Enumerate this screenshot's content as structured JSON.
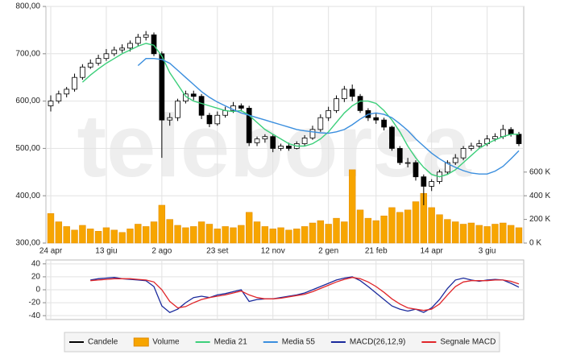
{
  "chart_data": [
    {
      "type": "candlestick",
      "watermark": "teleborsa",
      "grid": true,
      "categories": [
        "24 apr",
        null,
        null,
        null,
        null,
        null,
        null,
        "13 giu",
        null,
        null,
        null,
        null,
        null,
        null,
        "2 ago",
        null,
        null,
        null,
        null,
        null,
        null,
        "23 set",
        null,
        null,
        null,
        null,
        null,
        null,
        "12 nov",
        null,
        null,
        null,
        null,
        null,
        null,
        "2 gen",
        null,
        null,
        null,
        null,
        null,
        "21 feb",
        null,
        null,
        null,
        null,
        null,
        null,
        "14 apr",
        null,
        null,
        null,
        null,
        null,
        null,
        "3 giu",
        null,
        null,
        null,
        null
      ],
      "ylim": [
        300,
        800
      ],
      "yticks": [
        {
          "value": 800,
          "label": "800,00"
        },
        {
          "value": 700,
          "label": "700,00"
        },
        {
          "value": 600,
          "label": "600,00"
        },
        {
          "value": 500,
          "label": "500,00"
        },
        {
          "value": 400,
          "label": "400,00"
        },
        {
          "value": 300,
          "label": "300,00"
        }
      ],
      "y2lim": [
        0,
        2000000
      ],
      "y2ticks": [
        {
          "value": 0,
          "label": "0 K"
        },
        {
          "value": 200000,
          "label": "200 K"
        },
        {
          "value": 400000,
          "label": "400 K"
        },
        {
          "value": 600000,
          "label": "600 K"
        }
      ],
      "series": [
        {
          "name": "Candele",
          "color": "#000000",
          "open": [
            590,
            600,
            615,
            625,
            650,
            672,
            680,
            690,
            700,
            708,
            712,
            722,
            735,
            740,
            700,
            560,
            565,
            600,
            615,
            610,
            570,
            552,
            570,
            580,
            590,
            585,
            512,
            520,
            525,
            500,
            505,
            500,
            510,
            522,
            540,
            565,
            580,
            605,
            625,
            610,
            580,
            565,
            560,
            545,
            500,
            470,
            470,
            440,
            420,
            430,
            450,
            470,
            480,
            500,
            505,
            510,
            520,
            525,
            540,
            530
          ],
          "high": [
            612,
            622,
            630,
            658,
            678,
            688,
            698,
            710,
            715,
            720,
            728,
            742,
            748,
            745,
            705,
            575,
            605,
            622,
            622,
            615,
            575,
            578,
            588,
            598,
            595,
            590,
            525,
            530,
            530,
            510,
            512,
            515,
            528,
            548,
            572,
            588,
            612,
            632,
            635,
            615,
            585,
            575,
            565,
            548,
            505,
            480,
            475,
            445,
            435,
            455,
            475,
            488,
            505,
            512,
            518,
            528,
            532,
            550,
            545,
            535
          ],
          "low": [
            578,
            595,
            608,
            620,
            645,
            668,
            675,
            685,
            695,
            702,
            705,
            715,
            728,
            695,
            480,
            548,
            558,
            595,
            602,
            562,
            545,
            548,
            565,
            575,
            578,
            505,
            505,
            512,
            492,
            495,
            495,
            498,
            505,
            518,
            535,
            558,
            575,
            598,
            600,
            575,
            558,
            552,
            538,
            495,
            465,
            460,
            432,
            380,
            410,
            425,
            445,
            465,
            475,
            495,
            500,
            505,
            515,
            520,
            525,
            505
          ],
          "close": [
            600,
            615,
            625,
            650,
            672,
            680,
            690,
            700,
            708,
            712,
            722,
            735,
            740,
            700,
            560,
            565,
            600,
            615,
            610,
            570,
            552,
            570,
            580,
            590,
            585,
            512,
            520,
            525,
            500,
            505,
            500,
            510,
            522,
            540,
            565,
            580,
            605,
            625,
            610,
            580,
            565,
            560,
            545,
            500,
            470,
            470,
            440,
            420,
            430,
            450,
            470,
            480,
            500,
            505,
            510,
            520,
            525,
            540,
            530,
            510
          ]
        },
        {
          "name": "Volume",
          "type": "bar",
          "axis": "y2",
          "color": "#f7a500",
          "values": [
            250000,
            180000,
            140000,
            110000,
            150000,
            120000,
            100000,
            130000,
            110000,
            90000,
            120000,
            160000,
            140000,
            180000,
            320000,
            200000,
            150000,
            130000,
            140000,
            180000,
            160000,
            120000,
            140000,
            130000,
            150000,
            260000,
            180000,
            140000,
            120000,
            130000,
            110000,
            120000,
            140000,
            170000,
            190000,
            160000,
            210000,
            180000,
            620000,
            280000,
            210000,
            190000,
            230000,
            300000,
            260000,
            280000,
            350000,
            420000,
            300000,
            240000,
            200000,
            180000,
            160000,
            170000,
            150000,
            140000,
            160000,
            170000,
            150000,
            130000
          ]
        },
        {
          "name": "Media 21",
          "type": "line",
          "color": "#3ccf7a",
          "values": [
            null,
            null,
            null,
            null,
            640,
            655,
            668,
            680,
            690,
            700,
            708,
            716,
            722,
            718,
            695,
            660,
            635,
            610,
            600,
            595,
            590,
            585,
            580,
            578,
            580,
            570,
            555,
            540,
            530,
            520,
            510,
            505,
            505,
            510,
            520,
            535,
            555,
            575,
            590,
            600,
            600,
            595,
            580,
            560,
            535,
            505,
            480,
            460,
            445,
            440,
            445,
            455,
            470,
            485,
            500,
            510,
            518,
            525,
            530,
            530
          ]
        },
        {
          "name": "Media 55",
          "type": "line",
          "color": "#3a8ede",
          "values": [
            null,
            null,
            null,
            null,
            null,
            null,
            null,
            null,
            null,
            null,
            null,
            675,
            690,
            690,
            688,
            680,
            665,
            650,
            635,
            620,
            608,
            598,
            590,
            582,
            575,
            570,
            565,
            560,
            555,
            550,
            545,
            540,
            537,
            535,
            533,
            532,
            535,
            540,
            550,
            562,
            572,
            575,
            572,
            565,
            552,
            538,
            520,
            505,
            490,
            478,
            468,
            460,
            453,
            448,
            446,
            446,
            452,
            462,
            478,
            495
          ]
        }
      ]
    },
    {
      "type": "line",
      "grid": true,
      "ylim": [
        -46,
        46
      ],
      "yticks": [
        40,
        20,
        0,
        -20,
        -40
      ],
      "series": [
        {
          "name": "MACD(26,12,9)",
          "color": "#1a2a9c",
          "values": [
            null,
            null,
            null,
            null,
            null,
            15,
            17,
            18,
            19,
            17,
            16,
            15,
            14,
            5,
            -25,
            -35,
            -30,
            -20,
            -12,
            -10,
            -12,
            -8,
            -6,
            -3,
            0,
            -18,
            -15,
            -14,
            -14,
            -12,
            -10,
            -8,
            -5,
            0,
            5,
            10,
            15,
            18,
            20,
            14,
            5,
            -5,
            -15,
            -25,
            -30,
            -33,
            -30,
            -35,
            -28,
            -15,
            2,
            15,
            18,
            15,
            13,
            15,
            16,
            15,
            10,
            4
          ]
        },
        {
          "name": "Segnale MACD",
          "color": "#e0262a",
          "values": [
            null,
            null,
            null,
            null,
            null,
            14,
            15,
            16,
            17,
            17,
            17,
            16,
            15,
            12,
            0,
            -18,
            -28,
            -26,
            -20,
            -15,
            -12,
            -10,
            -8,
            -5,
            -2,
            -8,
            -12,
            -14,
            -14,
            -13,
            -11,
            -9,
            -7,
            -3,
            2,
            7,
            12,
            16,
            19,
            17,
            12,
            5,
            -4,
            -14,
            -22,
            -28,
            -30,
            -32,
            -30,
            -22,
            -8,
            5,
            12,
            14,
            14,
            14,
            15,
            15,
            13,
            9
          ]
        }
      ]
    }
  ]
}
